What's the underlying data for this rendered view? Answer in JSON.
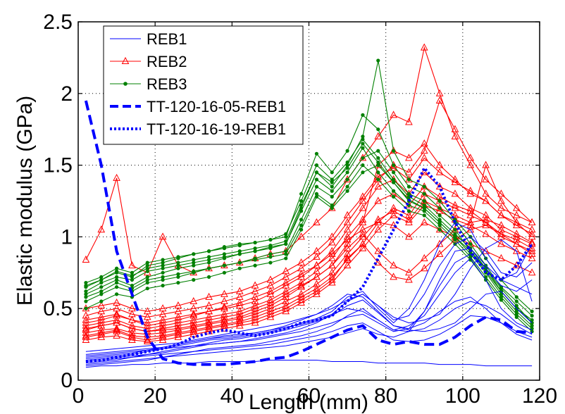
{
  "chart_data": {
    "type": "line",
    "title": "",
    "xlabel": "Length (mm)",
    "ylabel": "Elastic modulus (GPa)",
    "xlim": [
      0,
      120
    ],
    "ylim": [
      0,
      2.5
    ],
    "xticks": [
      "0",
      "20",
      "40",
      "60",
      "80",
      "100",
      "120"
    ],
    "yticks": [
      "0",
      "0.5",
      "1",
      "1.5",
      "2",
      "2.5"
    ],
    "grid": true,
    "legend_position": "top-left",
    "x": [
      2,
      6,
      10,
      14,
      18,
      22,
      26,
      30,
      34,
      38,
      42,
      46,
      50,
      54,
      58,
      62,
      66,
      70,
      74,
      78,
      82,
      86,
      90,
      94,
      98,
      102,
      106,
      110,
      114,
      118
    ],
    "groups": [
      {
        "name": "REB1",
        "color": "#0000ff",
        "style": "solid",
        "marker": "none",
        "series": [
          [
            0.12,
            0.13,
            0.14,
            0.16,
            0.18,
            0.2,
            0.22,
            0.24,
            0.25,
            0.26,
            0.27,
            0.29,
            0.31,
            0.33,
            0.36,
            0.4,
            0.46,
            0.55,
            0.6,
            0.52,
            0.42,
            0.45,
            0.6,
            0.8,
            0.95,
            1.0,
            0.9,
            0.75,
            0.72,
            0.82
          ],
          [
            0.15,
            0.16,
            0.17,
            0.18,
            0.2,
            0.22,
            0.24,
            0.26,
            0.28,
            0.29,
            0.3,
            0.32,
            0.34,
            0.36,
            0.4,
            0.43,
            0.48,
            0.58,
            0.62,
            0.5,
            0.4,
            0.5,
            0.7,
            0.95,
            1.1,
            1.05,
            0.85,
            0.7,
            0.75,
            0.95
          ],
          [
            0.1,
            0.11,
            0.12,
            0.13,
            0.14,
            0.16,
            0.18,
            0.2,
            0.22,
            0.23,
            0.24,
            0.25,
            0.27,
            0.29,
            0.31,
            0.34,
            0.38,
            0.45,
            0.5,
            0.42,
            0.35,
            0.38,
            0.45,
            0.6,
            0.75,
            0.85,
            0.7,
            0.5,
            0.4,
            0.35
          ],
          [
            0.18,
            0.19,
            0.2,
            0.21,
            0.22,
            0.23,
            0.25,
            0.27,
            0.29,
            0.3,
            0.31,
            0.33,
            0.35,
            0.38,
            0.42,
            0.46,
            0.52,
            0.6,
            0.58,
            0.48,
            0.38,
            0.36,
            0.4,
            0.48,
            0.55,
            0.58,
            0.5,
            0.4,
            0.32,
            0.28
          ],
          [
            0.13,
            0.14,
            0.15,
            0.16,
            0.17,
            0.18,
            0.19,
            0.2,
            0.21,
            0.22,
            0.23,
            0.24,
            0.25,
            0.27,
            0.29,
            0.31,
            0.34,
            0.38,
            0.4,
            0.34,
            0.28,
            0.27,
            0.28,
            0.32,
            0.38,
            0.45,
            0.44,
            0.4,
            0.34,
            0.3
          ],
          [
            0.16,
            0.17,
            0.18,
            0.19,
            0.21,
            0.23,
            0.25,
            0.27,
            0.29,
            0.31,
            0.32,
            0.33,
            0.35,
            0.37,
            0.39,
            0.42,
            0.46,
            0.5,
            0.48,
            0.42,
            0.35,
            0.34,
            0.36,
            0.42,
            0.5,
            0.55,
            0.52,
            0.46,
            0.38,
            0.32
          ],
          [
            0.11,
            0.12,
            0.13,
            0.14,
            0.15,
            0.16,
            0.17,
            0.18,
            0.19,
            0.2,
            0.21,
            0.22,
            0.23,
            0.24,
            0.26,
            0.28,
            0.3,
            0.33,
            0.36,
            0.32,
            0.3,
            0.34,
            0.48,
            0.7,
            0.9,
            0.92,
            0.8,
            0.7,
            0.65,
            0.6
          ],
          [
            0.09,
            0.1,
            0.1,
            0.11,
            0.11,
            0.12,
            0.12,
            0.12,
            0.13,
            0.13,
            0.13,
            0.13,
            0.14,
            0.14,
            0.14,
            0.14,
            0.13,
            0.13,
            0.13,
            0.12,
            0.12,
            0.12,
            0.12,
            0.11,
            0.11,
            0.11,
            0.1,
            0.1,
            0.1,
            0.1
          ],
          [
            0.2,
            0.21,
            0.22,
            0.23,
            0.24,
            0.25,
            0.26,
            0.28,
            0.3,
            0.32,
            0.34,
            0.36,
            0.38,
            0.4,
            0.43,
            0.46,
            0.5,
            0.56,
            0.6,
            0.52,
            0.44,
            0.4,
            0.42,
            0.46,
            0.6,
            0.78,
            0.92,
            0.98,
            0.9,
            0.55
          ],
          [
            0.14,
            0.15,
            0.16,
            0.17,
            0.18,
            0.19,
            0.21,
            0.23,
            0.25,
            0.26,
            0.27,
            0.28,
            0.3,
            0.32,
            0.34,
            0.37,
            0.4,
            0.44,
            0.46,
            0.4,
            0.34,
            0.36,
            0.48,
            0.66,
            0.82,
            0.88,
            0.78,
            0.66,
            0.62,
            0.7
          ],
          [
            0.17,
            0.18,
            0.19,
            0.2,
            0.21,
            0.22,
            0.23,
            0.24,
            0.26,
            0.28,
            0.29,
            0.31,
            0.33,
            0.35,
            0.38,
            0.41,
            0.45,
            0.52,
            0.56,
            0.47,
            0.38,
            0.35,
            0.34,
            0.36,
            0.4,
            0.5,
            0.6,
            0.62,
            0.5,
            0.4
          ]
        ]
      },
      {
        "name": "REB2",
        "color": "#ff0000",
        "style": "solid",
        "marker": "triangle",
        "series": [
          [
            0.84,
            1.05,
            1.41,
            0.8,
            0.75,
            1.0,
            0.8,
            0.75,
            0.78,
            0.8,
            0.82,
            0.85,
            0.88,
            0.9,
            1.0,
            1.1,
            1.2,
            1.4,
            1.55,
            1.7,
            1.85,
            1.8,
            2.32,
            2.0,
            1.7,
            1.5,
            1.3,
            1.2,
            1.15,
            1.1
          ],
          [
            0.35,
            0.38,
            0.4,
            0.36,
            0.34,
            0.35,
            0.36,
            0.38,
            0.4,
            0.42,
            0.44,
            0.48,
            0.52,
            0.58,
            0.65,
            0.72,
            0.8,
            0.95,
            1.1,
            1.5,
            1.6,
            1.55,
            1.65,
            1.5,
            1.4,
            1.3,
            1.25,
            1.15,
            1.1,
            1.05
          ],
          [
            0.4,
            0.42,
            0.45,
            0.42,
            0.38,
            0.4,
            0.42,
            0.45,
            0.48,
            0.5,
            0.52,
            0.55,
            0.6,
            0.66,
            0.72,
            0.8,
            0.9,
            1.05,
            1.2,
            1.35,
            1.4,
            1.3,
            1.45,
            1.35,
            1.3,
            1.2,
            1.15,
            1.05,
            1.0,
            0.95
          ],
          [
            0.3,
            0.32,
            0.34,
            0.3,
            0.28,
            0.3,
            0.32,
            0.34,
            0.36,
            0.38,
            0.4,
            0.42,
            0.46,
            0.5,
            0.56,
            0.62,
            0.7,
            0.85,
            0.95,
            1.1,
            1.2,
            1.15,
            1.3,
            1.25,
            1.2,
            1.15,
            1.1,
            1.0,
            0.95,
            0.9
          ],
          [
            0.45,
            0.48,
            0.5,
            0.46,
            0.44,
            0.46,
            0.48,
            0.5,
            0.52,
            0.55,
            0.58,
            0.62,
            0.66,
            0.72,
            0.78,
            0.86,
            0.96,
            1.1,
            1.25,
            1.4,
            1.5,
            1.45,
            1.6,
            1.95,
            1.75,
            1.55,
            1.4,
            1.3,
            1.2,
            1.1
          ],
          [
            0.38,
            0.4,
            0.42,
            0.38,
            0.36,
            0.38,
            0.4,
            0.42,
            0.44,
            0.46,
            0.48,
            0.52,
            0.56,
            0.62,
            0.68,
            0.76,
            0.85,
            1.0,
            1.12,
            1.25,
            1.3,
            1.22,
            1.35,
            1.28,
            1.22,
            1.18,
            1.1,
            1.02,
            0.98,
            0.92
          ],
          [
            0.28,
            0.3,
            0.31,
            0.28,
            0.27,
            0.28,
            0.3,
            0.32,
            0.34,
            0.36,
            0.38,
            0.4,
            0.44,
            0.48,
            0.54,
            0.6,
            0.68,
            0.8,
            0.92,
            1.05,
            1.15,
            1.1,
            1.22,
            1.18,
            1.12,
            1.08,
            1.02,
            0.95,
            0.9,
            0.85
          ],
          [
            0.5,
            0.52,
            0.54,
            0.5,
            0.48,
            0.5,
            0.52,
            0.55,
            0.58,
            0.6,
            0.62,
            0.66,
            0.7,
            0.76,
            0.82,
            0.9,
            1.0,
            1.15,
            1.28,
            1.42,
            1.48,
            1.4,
            1.55,
            1.45,
            1.38,
            1.32,
            1.25,
            1.15,
            1.08,
            1.02
          ],
          [
            0.33,
            0.35,
            0.36,
            0.33,
            0.32,
            0.33,
            0.35,
            0.37,
            0.39,
            0.41,
            0.43,
            0.46,
            0.5,
            0.55,
            0.6,
            0.67,
            0.75,
            0.88,
            1.0,
            1.12,
            1.18,
            1.12,
            1.25,
            1.2,
            1.15,
            1.1,
            1.5,
            1.25,
            1.1,
            1.0
          ],
          [
            0.42,
            0.44,
            0.46,
            0.42,
            0.4,
            0.42,
            0.44,
            0.46,
            0.48,
            0.51,
            0.54,
            0.58,
            0.62,
            0.68,
            0.74,
            0.8,
            0.88,
            0.98,
            1.05,
            1.1,
            1.08,
            1.0,
            1.1,
            1.05,
            1.0,
            0.95,
            0.9,
            0.85,
            0.8,
            0.75
          ],
          [
            0.36,
            0.38,
            0.4,
            0.36,
            0.34,
            0.36,
            0.38,
            0.4,
            0.42,
            0.44,
            0.46,
            0.5,
            0.54,
            0.6,
            0.66,
            0.72,
            0.8,
            0.92,
            1.02,
            0.9,
            0.8,
            0.75,
            0.85,
            0.95,
            1.05,
            1.1,
            1.12,
            1.08,
            1.02,
            0.96
          ],
          [
            0.31,
            0.33,
            0.35,
            0.31,
            0.3,
            0.31,
            0.33,
            0.35,
            0.37,
            0.39,
            0.41,
            0.44,
            0.48,
            0.52,
            0.58,
            0.64,
            0.72,
            0.84,
            0.95,
            0.82,
            0.72,
            0.7,
            0.78,
            0.88,
            0.98,
            1.05,
            1.08,
            1.02,
            0.95,
            0.88
          ]
        ]
      },
      {
        "name": "REB3",
        "color": "#008000",
        "style": "solid",
        "marker": "dot",
        "series": [
          [
            0.65,
            0.7,
            0.75,
            0.72,
            0.8,
            0.82,
            0.85,
            0.88,
            0.9,
            0.93,
            0.95,
            0.96,
            0.98,
            1.0,
            1.3,
            1.58,
            1.45,
            1.6,
            1.85,
            1.75,
            1.5,
            1.35,
            1.3,
            1.2,
            1.1,
            0.95,
            0.8,
            0.65,
            0.55,
            0.45
          ],
          [
            0.6,
            0.65,
            0.7,
            0.66,
            0.72,
            0.75,
            0.78,
            0.8,
            0.82,
            0.85,
            0.88,
            0.9,
            0.93,
            0.95,
            1.2,
            1.45,
            1.35,
            1.5,
            1.7,
            2.23,
            1.6,
            1.4,
            1.35,
            1.25,
            1.12,
            1.0,
            0.85,
            0.7,
            0.58,
            0.48
          ],
          [
            0.55,
            0.6,
            0.65,
            0.62,
            0.68,
            0.7,
            0.72,
            0.75,
            0.78,
            0.8,
            0.82,
            0.85,
            0.88,
            0.9,
            1.12,
            1.35,
            1.28,
            1.4,
            1.55,
            1.6,
            1.45,
            1.3,
            1.25,
            1.15,
            1.05,
            0.9,
            0.78,
            0.62,
            0.5,
            0.42
          ],
          [
            0.68,
            0.72,
            0.78,
            0.75,
            0.82,
            0.84,
            0.86,
            0.88,
            0.9,
            0.92,
            0.94,
            0.96,
            0.98,
            1.02,
            1.25,
            1.5,
            1.4,
            1.52,
            1.68,
            1.55,
            1.4,
            1.28,
            1.22,
            1.12,
            1.02,
            0.92,
            0.78,
            0.64,
            0.52,
            0.4
          ],
          [
            0.5,
            0.55,
            0.6,
            0.58,
            0.64,
            0.66,
            0.68,
            0.7,
            0.72,
            0.75,
            0.78,
            0.8,
            0.82,
            0.85,
            1.05,
            1.28,
            1.2,
            1.32,
            1.45,
            1.5,
            1.38,
            1.25,
            1.2,
            1.1,
            1.0,
            0.88,
            0.75,
            0.6,
            0.48,
            0.38
          ],
          [
            0.62,
            0.68,
            0.72,
            0.7,
            0.76,
            0.78,
            0.8,
            0.82,
            0.84,
            0.86,
            0.88,
            0.9,
            0.92,
            0.95,
            1.18,
            1.4,
            1.32,
            1.45,
            1.62,
            1.45,
            1.32,
            1.22,
            1.18,
            1.08,
            0.98,
            0.86,
            0.72,
            0.58,
            0.46,
            0.36
          ],
          [
            0.58,
            0.62,
            0.68,
            0.64,
            0.7,
            0.72,
            0.74,
            0.76,
            0.78,
            0.8,
            0.82,
            0.84,
            0.86,
            0.88,
            1.08,
            1.3,
            1.22,
            1.35,
            1.5,
            1.4,
            1.28,
            1.18,
            1.15,
            1.05,
            0.95,
            0.84,
            0.7,
            0.56,
            0.44,
            0.34
          ],
          [
            0.66,
            0.7,
            0.76,
            0.73,
            0.78,
            0.8,
            0.82,
            0.84,
            0.86,
            0.88,
            0.9,
            0.92,
            0.94,
            0.97,
            1.22,
            1.45,
            1.38,
            1.48,
            1.65,
            1.52,
            1.38,
            1.26,
            1.2,
            1.1,
            1.0,
            0.9,
            0.76,
            0.62,
            0.5,
            0.4
          ]
        ]
      }
    ],
    "highlighted": [
      {
        "name": "TT-120-16-05-REB1",
        "color": "#0000ff",
        "style": "dashed",
        "values": [
          1.95,
          1.5,
          0.9,
          0.6,
          0.3,
          0.15,
          0.12,
          0.11,
          0.11,
          0.11,
          0.12,
          0.13,
          0.15,
          0.16,
          0.2,
          0.25,
          0.3,
          0.35,
          0.38,
          0.28,
          0.25,
          0.27,
          0.25,
          0.25,
          0.3,
          0.38,
          0.44,
          0.42,
          0.34,
          0.33
        ]
      },
      {
        "name": "TT-120-16-19-REB1",
        "color": "#0000ff",
        "style": "dotted",
        "values": [
          0.13,
          0.14,
          0.16,
          0.18,
          0.2,
          0.22,
          0.25,
          0.3,
          0.33,
          0.35,
          0.33,
          0.31,
          0.33,
          0.36,
          0.4,
          0.42,
          0.45,
          0.55,
          0.65,
          0.85,
          1.05,
          1.25,
          1.48,
          1.35,
          1.1,
          0.9,
          0.75,
          0.7,
          0.8,
          0.95
        ]
      }
    ]
  }
}
